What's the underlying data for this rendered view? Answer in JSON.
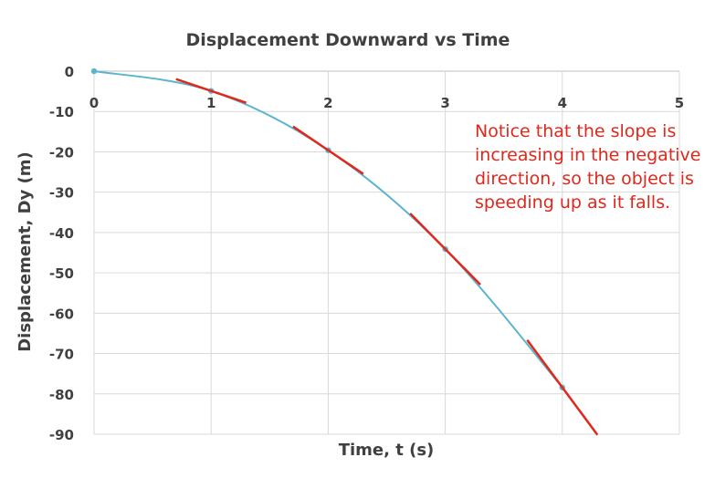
{
  "chart_data": {
    "type": "line",
    "title": "Displacement Downward vs Time",
    "xlabel": "Time, t (s)",
    "ylabel": "Displacement, Dy (m)",
    "xlim": [
      0,
      5
    ],
    "ylim": [
      -90,
      0
    ],
    "xticks": [
      "0",
      "1",
      "2",
      "3",
      "4",
      "5"
    ],
    "yticks": [
      "0",
      "-10",
      "-20",
      "-30",
      "-40",
      "-50",
      "-60",
      "-70",
      "-80",
      "-90"
    ],
    "grid": true,
    "legend": "none",
    "series": [
      {
        "x": [
          0,
          1,
          2,
          3,
          4
        ],
        "values": [
          0,
          -4.9,
          -19.6,
          -44.1,
          -78.4
        ]
      }
    ],
    "tangent_points": [
      1,
      2,
      3,
      4
    ],
    "annotation": [
      "Notice that the slope is",
      "increasing in the negative",
      "direction, so the object is",
      "speeding up as it falls."
    ],
    "colors": {
      "series": "#5bb5d0",
      "tangent": "#e0281c",
      "annotation": "#e0281c",
      "grid": "#d9d9d9",
      "text": "#404040"
    }
  }
}
